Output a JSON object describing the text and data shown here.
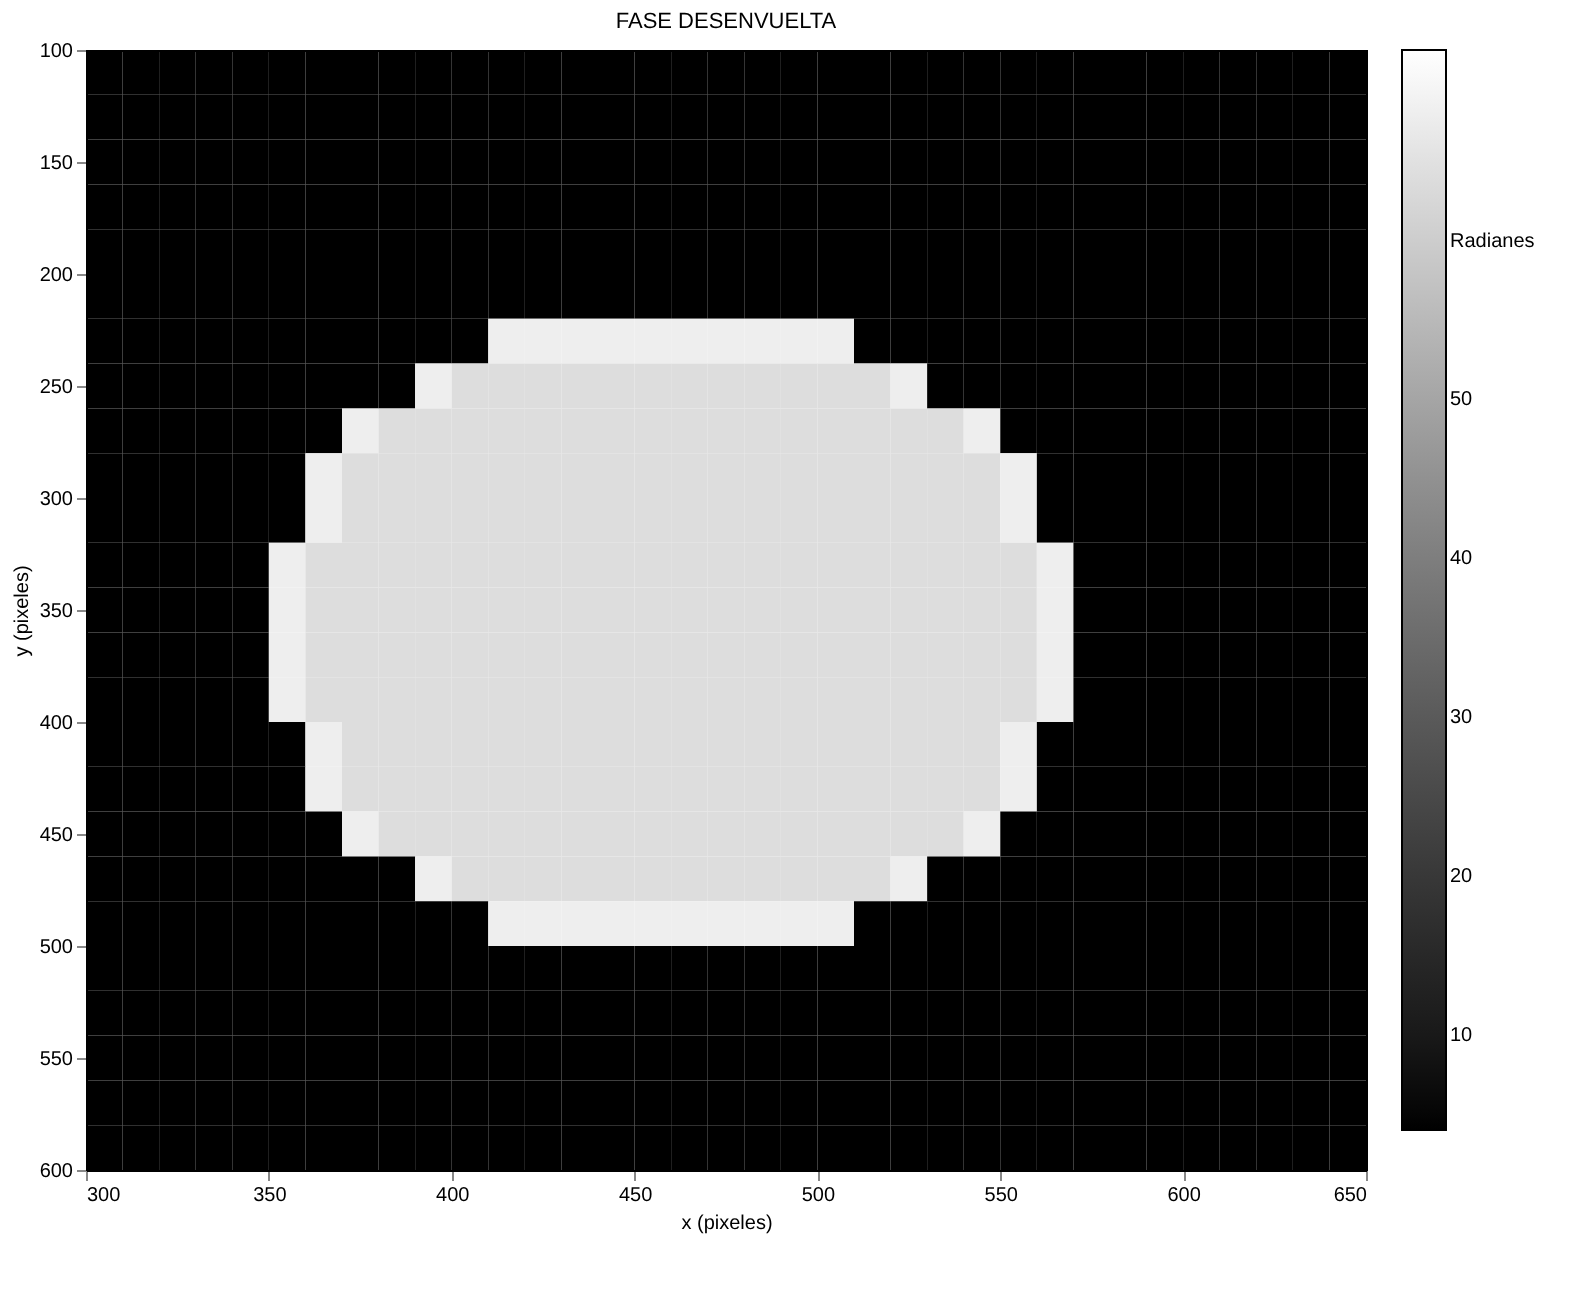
{
  "chart_data": {
    "type": "heatmap",
    "title": "FASE DESENVUELTA",
    "xlabel": "x (pixeles)",
    "ylabel": "y (pixeles)",
    "x": [
      305,
      315,
      325,
      335,
      345,
      355,
      365,
      375,
      385,
      395,
      405,
      415,
      425,
      435,
      445,
      455,
      465,
      475,
      485,
      495,
      505,
      515,
      525,
      535,
      545,
      555,
      565,
      575,
      585,
      595,
      605,
      615,
      625,
      635,
      645
    ],
    "y": [
      110,
      130,
      150,
      170,
      190,
      210,
      230,
      250,
      270,
      290,
      310,
      330,
      350,
      370,
      390,
      410,
      430,
      450,
      470,
      490,
      510,
      530,
      550,
      570,
      590
    ],
    "cells": [
      [
        4,
        4,
        4,
        4,
        4,
        4,
        4,
        4,
        4,
        4,
        4,
        4,
        4,
        4,
        4,
        4,
        4,
        4,
        4,
        4,
        4,
        4,
        4,
        4,
        4,
        4,
        4,
        4,
        4,
        4,
        4,
        4,
        4,
        4,
        4
      ],
      [
        4,
        4,
        4,
        4,
        4,
        4,
        4,
        4,
        4,
        4,
        4,
        4,
        4,
        4,
        4,
        4,
        4,
        4,
        4,
        4,
        4,
        4,
        4,
        4,
        4,
        4,
        4,
        4,
        4,
        4,
        4,
        4,
        4,
        4,
        4
      ],
      [
        4,
        4,
        4,
        4,
        4,
        4,
        4,
        4,
        4,
        4,
        4,
        4,
        4,
        4,
        4,
        4,
        4,
        4,
        4,
        4,
        4,
        4,
        4,
        4,
        4,
        4,
        4,
        4,
        4,
        4,
        4,
        4,
        4,
        4,
        4
      ],
      [
        4,
        4,
        4,
        4,
        4,
        4,
        4,
        4,
        4,
        4,
        4,
        4,
        4,
        4,
        4,
        4,
        4,
        4,
        4,
        4,
        4,
        4,
        4,
        4,
        4,
        4,
        4,
        4,
        4,
        4,
        4,
        4,
        4,
        4,
        4
      ],
      [
        4,
        4,
        4,
        4,
        4,
        4,
        4,
        4,
        4,
        4,
        4,
        4,
        4,
        4,
        4,
        4,
        4,
        4,
        4,
        4,
        4,
        4,
        4,
        4,
        4,
        4,
        4,
        4,
        4,
        4,
        4,
        4,
        4,
        4,
        4
      ],
      [
        4,
        4,
        4,
        4,
        4,
        4,
        4,
        4,
        4,
        4,
        4,
        4,
        4,
        4,
        4,
        4,
        4,
        4,
        4,
        4,
        4,
        4,
        4,
        4,
        4,
        4,
        4,
        4,
        4,
        4,
        4,
        4,
        4,
        4,
        4
      ],
      [
        4,
        4,
        4,
        4,
        4,
        4,
        4,
        4,
        4,
        4,
        4,
        68,
        68,
        68,
        68,
        68,
        68,
        68,
        68,
        68,
        68,
        4,
        4,
        4,
        4,
        4,
        4,
        4,
        4,
        4,
        4,
        4,
        4,
        4,
        4
      ],
      [
        4,
        4,
        4,
        4,
        4,
        4,
        4,
        4,
        4,
        68,
        64,
        64,
        64,
        64,
        64,
        64,
        64,
        64,
        64,
        64,
        64,
        64,
        68,
        4,
        4,
        4,
        4,
        4,
        4,
        4,
        4,
        4,
        4,
        4,
        4
      ],
      [
        4,
        4,
        4,
        4,
        4,
        4,
        4,
        68,
        64,
        64,
        64,
        64,
        64,
        64,
        64,
        64,
        64,
        64,
        64,
        64,
        64,
        64,
        64,
        64,
        68,
        4,
        4,
        4,
        4,
        4,
        4,
        4,
        4,
        4,
        4
      ],
      [
        4,
        4,
        4,
        4,
        4,
        4,
        68,
        64,
        64,
        64,
        64,
        64,
        64,
        64,
        64,
        64,
        64,
        64,
        64,
        64,
        64,
        64,
        64,
        64,
        64,
        68,
        4,
        4,
        4,
        4,
        4,
        4,
        4,
        4,
        4
      ],
      [
        4,
        4,
        4,
        4,
        4,
        4,
        68,
        64,
        64,
        64,
        64,
        64,
        64,
        64,
        64,
        64,
        64,
        64,
        64,
        64,
        64,
        64,
        64,
        64,
        64,
        68,
        4,
        4,
        4,
        4,
        4,
        4,
        4,
        4,
        4
      ],
      [
        4,
        4,
        4,
        4,
        4,
        68,
        64,
        64,
        64,
        64,
        64,
        64,
        64,
        64,
        64,
        64,
        64,
        64,
        64,
        64,
        64,
        64,
        64,
        64,
        64,
        64,
        68,
        4,
        4,
        4,
        4,
        4,
        4,
        4,
        4
      ],
      [
        4,
        4,
        4,
        4,
        4,
        68,
        64,
        64,
        64,
        64,
        64,
        64,
        64,
        64,
        64,
        64,
        64,
        64,
        64,
        64,
        64,
        64,
        64,
        64,
        64,
        64,
        68,
        4,
        4,
        4,
        4,
        4,
        4,
        4,
        4
      ],
      [
        4,
        4,
        4,
        4,
        4,
        68,
        64,
        64,
        64,
        64,
        64,
        64,
        64,
        64,
        64,
        64,
        64,
        64,
        64,
        64,
        64,
        64,
        64,
        64,
        64,
        64,
        68,
        4,
        4,
        4,
        4,
        4,
        4,
        4,
        4
      ],
      [
        4,
        4,
        4,
        4,
        4,
        68,
        64,
        64,
        64,
        64,
        64,
        64,
        64,
        64,
        64,
        64,
        64,
        64,
        64,
        64,
        64,
        64,
        64,
        64,
        64,
        64,
        68,
        4,
        4,
        4,
        4,
        4,
        4,
        4,
        4
      ],
      [
        4,
        4,
        4,
        4,
        4,
        4,
        68,
        64,
        64,
        64,
        64,
        64,
        64,
        64,
        64,
        64,
        64,
        64,
        64,
        64,
        64,
        64,
        64,
        64,
        64,
        68,
        4,
        4,
        4,
        4,
        4,
        4,
        4,
        4,
        4
      ],
      [
        4,
        4,
        4,
        4,
        4,
        4,
        68,
        64,
        64,
        64,
        64,
        64,
        64,
        64,
        64,
        64,
        64,
        64,
        64,
        64,
        64,
        64,
        64,
        64,
        64,
        68,
        4,
        4,
        4,
        4,
        4,
        4,
        4,
        4,
        4
      ],
      [
        4,
        4,
        4,
        4,
        4,
        4,
        4,
        68,
        64,
        64,
        64,
        64,
        64,
        64,
        64,
        64,
        64,
        64,
        64,
        64,
        64,
        64,
        64,
        64,
        68,
        4,
        4,
        4,
        4,
        4,
        4,
        4,
        4,
        4,
        4
      ],
      [
        4,
        4,
        4,
        4,
        4,
        4,
        4,
        4,
        4,
        68,
        64,
        64,
        64,
        64,
        64,
        64,
        64,
        64,
        64,
        64,
        64,
        64,
        68,
        4,
        4,
        4,
        4,
        4,
        4,
        4,
        4,
        4,
        4,
        4,
        4
      ],
      [
        4,
        4,
        4,
        4,
        4,
        4,
        4,
        4,
        4,
        4,
        4,
        68,
        68,
        68,
        68,
        68,
        68,
        68,
        68,
        68,
        68,
        4,
        4,
        4,
        4,
        4,
        4,
        4,
        4,
        4,
        4,
        4,
        4,
        4,
        4
      ],
      [
        4,
        4,
        4,
        4,
        4,
        4,
        4,
        4,
        4,
        4,
        4,
        4,
        4,
        4,
        4,
        4,
        4,
        4,
        4,
        4,
        4,
        4,
        4,
        4,
        4,
        4,
        4,
        4,
        4,
        4,
        4,
        4,
        4,
        4,
        4
      ],
      [
        4,
        4,
        4,
        4,
        4,
        4,
        4,
        4,
        4,
        4,
        4,
        4,
        4,
        4,
        4,
        4,
        4,
        4,
        4,
        4,
        4,
        4,
        4,
        4,
        4,
        4,
        4,
        4,
        4,
        4,
        4,
        4,
        4,
        4,
        4
      ],
      [
        4,
        4,
        4,
        4,
        4,
        4,
        4,
        4,
        4,
        4,
        4,
        4,
        4,
        4,
        4,
        4,
        4,
        4,
        4,
        4,
        4,
        4,
        4,
        4,
        4,
        4,
        4,
        4,
        4,
        4,
        4,
        4,
        4,
        4,
        4
      ],
      [
        4,
        4,
        4,
        4,
        4,
        4,
        4,
        4,
        4,
        4,
        4,
        4,
        4,
        4,
        4,
        4,
        4,
        4,
        4,
        4,
        4,
        4,
        4,
        4,
        4,
        4,
        4,
        4,
        4,
        4,
        4,
        4,
        4,
        4,
        4
      ],
      [
        4,
        4,
        4,
        4,
        4,
        4,
        4,
        4,
        4,
        4,
        4,
        4,
        4,
        4,
        4,
        4,
        4,
        4,
        4,
        4,
        4,
        4,
        4,
        4,
        4,
        4,
        4,
        4,
        4,
        4,
        4,
        4,
        4,
        4,
        4
      ]
    ],
    "xlim": [
      300,
      650
    ],
    "xticks": [
      300,
      350,
      400,
      450,
      500,
      550,
      600,
      650
    ],
    "ylim": [
      600,
      100
    ],
    "yticks": [
      100,
      150,
      200,
      250,
      300,
      350,
      400,
      450,
      500,
      550,
      600
    ],
    "clim": [
      4,
      72
    ],
    "cticks": [
      10,
      20,
      30,
      40,
      50,
      {
        "value": 60,
        "label": "Radianes"
      }
    ],
    "grid": false
  }
}
